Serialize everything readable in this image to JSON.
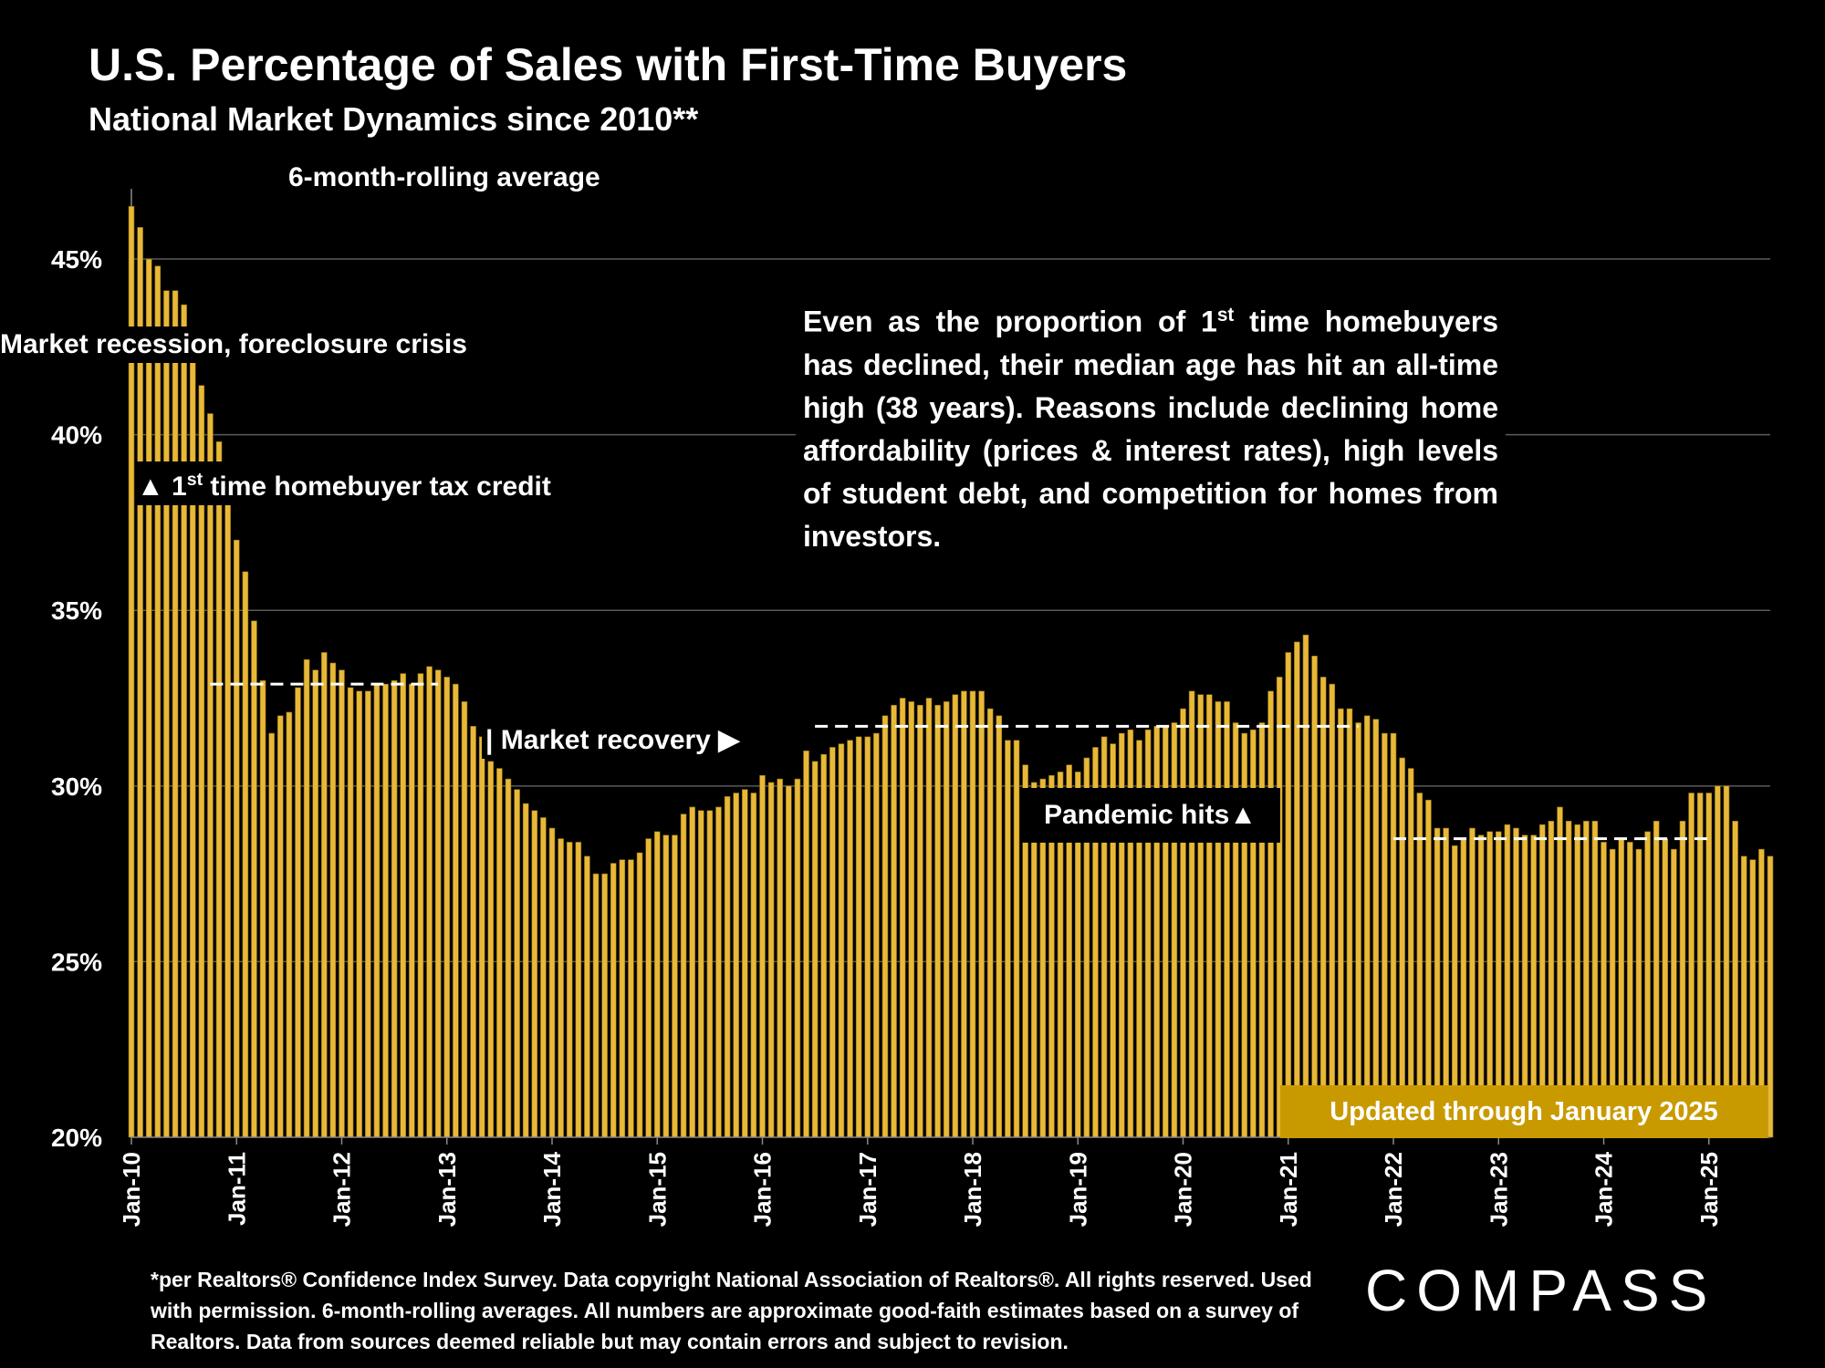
{
  "header": {
    "title": "U.S. Percentage of Sales with First-Time Buyers",
    "subtitle": "National Market Dynamics since 2010**",
    "rolling_label": "6-month-rolling average"
  },
  "annotations": {
    "recession": "Market recession, foreclosure crisis",
    "tax_credit": "▲ 1st time homebuyer tax credit",
    "recovery": "| Market recovery ▶",
    "pandemic": "Pandemic hits▲",
    "note": "Even as the proportion of 1st time homebuyers has declined, their median age has hit an all-time high (38 years). Reasons include declining home affordability (prices & interest rates), high levels of student debt, and competition for homes from investors.",
    "updated": "Updated through January 2025"
  },
  "footer": {
    "footnote": "*per Realtors® Confidence Index Survey. Data copyright National Association of Realtors®. All rights reserved. Used with permission. 6-month-rolling averages. All numbers are approximate good-faith estimates based on a survey of Realtors. Data from sources deemed reliable but may contain errors and subject to revision.",
    "logo": "COMPASS"
  },
  "colors": {
    "bar": "#e8b838",
    "bar_edge": "#8a6a10",
    "updated_bg": "#c99a00",
    "grid": "#5a5a5a"
  },
  "chart_data": {
    "type": "bar",
    "title": "U.S. Percentage of Sales with First-Time Buyers",
    "subtitle": "National Market Dynamics since 2010**",
    "ylabel": "",
    "xlabel": "",
    "ylim": [
      20,
      47
    ],
    "yticks": [
      "20%",
      "25%",
      "30%",
      "35%",
      "40%",
      "45%"
    ],
    "ytick_values": [
      20,
      25,
      30,
      35,
      40,
      45
    ],
    "x_tick_labels": [
      "Jan-10",
      "Jan-11",
      "Jan-12",
      "Jan-13",
      "Jan-14",
      "Jan-15",
      "Jan-16",
      "Jan-17",
      "Jan-18",
      "Jan-19",
      "Jan-20",
      "Jan-21",
      "Jan-22",
      "Jan-23",
      "Jan-24",
      "Jan-25"
    ],
    "start": "Jan-10",
    "end": "Jan-25",
    "grid": true,
    "values": [
      46.5,
      45.9,
      45.0,
      44.8,
      44.1,
      44.1,
      43.7,
      42.6,
      41.4,
      40.6,
      39.8,
      38.0,
      37.0,
      36.1,
      34.7,
      33.0,
      31.5,
      32.0,
      32.1,
      32.8,
      33.6,
      33.3,
      33.8,
      33.5,
      33.3,
      32.8,
      32.7,
      32.7,
      32.9,
      32.9,
      33.0,
      33.2,
      32.9,
      33.2,
      33.4,
      33.3,
      33.1,
      32.9,
      32.4,
      31.7,
      31.4,
      30.7,
      30.5,
      30.2,
      29.9,
      29.5,
      29.3,
      29.1,
      28.8,
      28.5,
      28.4,
      28.4,
      28.0,
      27.5,
      27.5,
      27.8,
      27.9,
      27.9,
      28.1,
      28.5,
      28.7,
      28.6,
      28.6,
      29.2,
      29.4,
      29.3,
      29.3,
      29.4,
      29.7,
      29.8,
      29.9,
      29.8,
      30.3,
      30.1,
      30.2,
      30.0,
      30.2,
      31.0,
      30.7,
      30.9,
      31.1,
      31.2,
      31.3,
      31.4,
      31.4,
      31.5,
      32.0,
      32.3,
      32.5,
      32.4,
      32.3,
      32.5,
      32.3,
      32.4,
      32.6,
      32.7,
      32.7,
      32.7,
      32.2,
      32.0,
      31.3,
      31.3,
      30.6,
      30.1,
      30.2,
      30.3,
      30.4,
      30.6,
      30.4,
      30.8,
      31.1,
      31.4,
      31.2,
      31.5,
      31.6,
      31.3,
      31.6,
      31.7,
      31.7,
      31.8,
      32.2,
      32.7,
      32.6,
      32.6,
      32.4,
      32.4,
      31.8,
      31.5,
      31.6,
      31.8,
      32.7,
      33.1,
      33.8,
      34.1,
      34.3,
      33.7,
      33.1,
      32.9,
      32.2,
      32.2,
      31.8,
      32.0,
      31.9,
      31.5,
      31.5,
      30.8,
      30.5,
      29.8,
      29.6,
      28.8,
      28.8,
      28.3,
      28.5,
      28.8,
      28.6,
      28.7,
      28.7,
      28.9,
      28.8,
      28.6,
      28.6,
      28.9,
      29.0,
      29.4,
      29.0,
      28.9,
      29.0,
      29.0,
      28.4,
      28.2,
      28.5,
      28.4,
      28.2,
      28.7,
      29.0,
      28.5,
      28.2,
      29.0,
      29.8,
      29.8,
      29.8,
      30.0,
      30.0,
      29.0,
      28.0,
      27.9,
      28.2,
      28.0
    ],
    "reference_lines": [
      {
        "from": "Oct-10",
        "to": "Dec-12",
        "value": 32.9
      },
      {
        "from": "Jul-16",
        "to": "Sep-21",
        "value": 31.7
      },
      {
        "from": "Jan-22",
        "to": "Jan-25",
        "value": 28.5
      }
    ]
  }
}
